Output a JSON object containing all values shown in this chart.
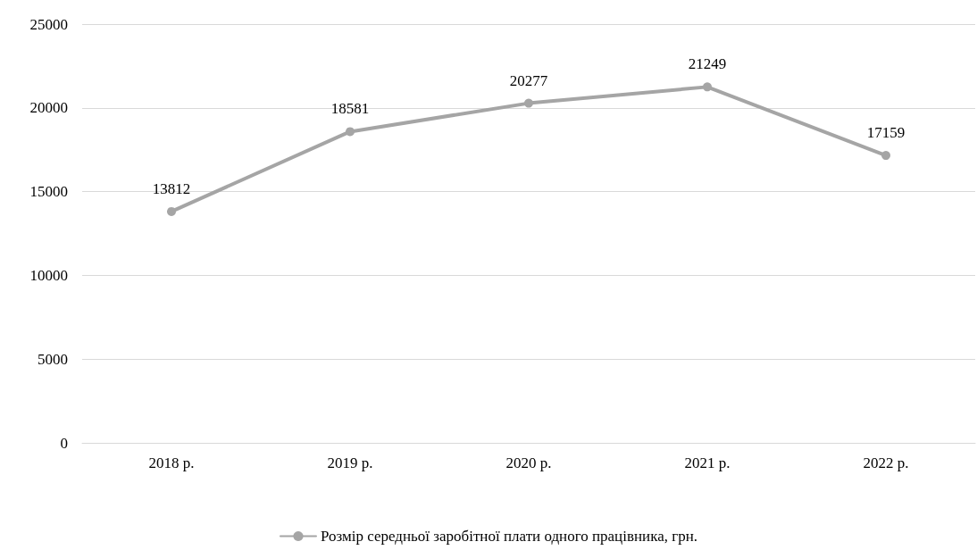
{
  "chart_data": {
    "type": "line",
    "categories": [
      "2018 р.",
      "2019 р.",
      "2020 р.",
      "2021 р.",
      "2022 р."
    ],
    "series": [
      {
        "name": "Розмір середньої заробітної плати одного працівника, грн.",
        "color": "#a5a5a5",
        "values": [
          13812,
          18581,
          20277,
          21249,
          17159
        ]
      }
    ],
    "ylim": [
      0,
      25000
    ],
    "yticks": [
      0,
      5000,
      10000,
      15000,
      20000,
      25000
    ],
    "grid": "y",
    "legend": "bottom",
    "marker": "circle",
    "line_style": "solid",
    "data_labels": true
  }
}
